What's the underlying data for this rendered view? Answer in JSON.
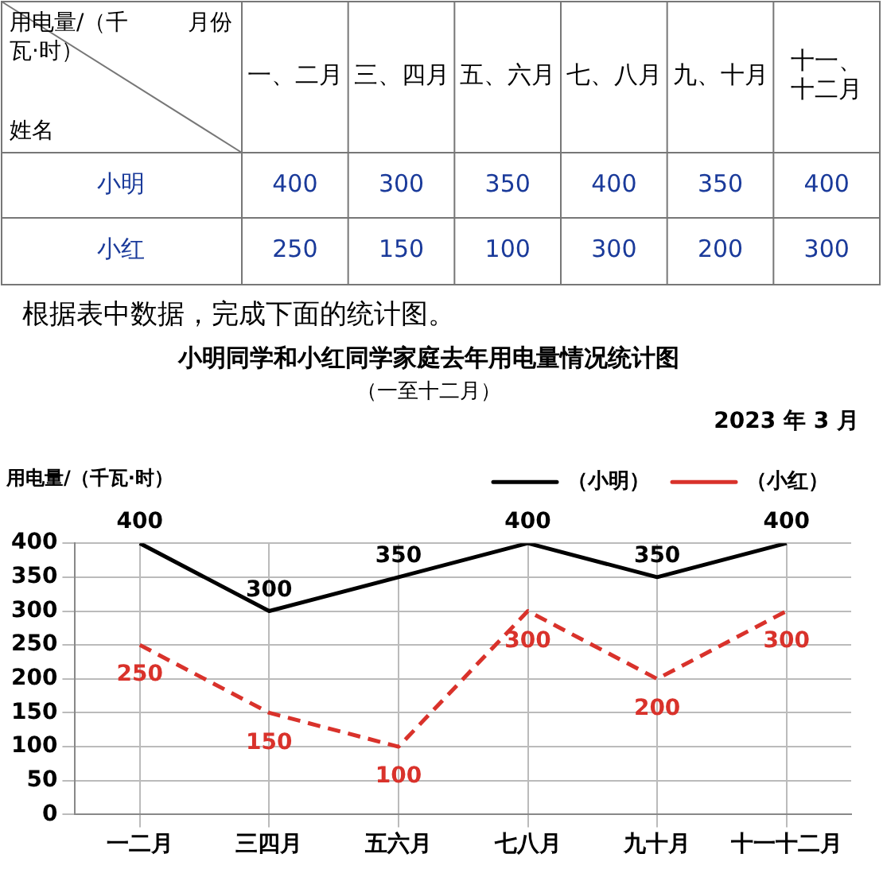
{
  "chart_data": [
    {
      "type": "heatmap",
      "xlabel": "月份",
      "ylabel": "用电量/（千瓦·时）",
      "annotations": [
        "姓名",
        "根据表中数据，完成下面的统计图。"
      ],
      "categories": [
        "一、二月",
        "三、四月",
        "五、六月",
        "七、八月",
        "九、十月",
        "十一、十二月"
      ],
      "y_categories": [
        "小明",
        "小红"
      ],
      "data_labels": true,
      "cells": [
        [
          400,
          300,
          350,
          400,
          350,
          400
        ],
        [
          250,
          150,
          100,
          300,
          200,
          300
        ]
      ]
    },
    {
      "type": "line",
      "title": "小明同学和小红同学家庭去年用电量情况统计图",
      "subtitle": "（一至十二月）",
      "ylabel": "用电量/（千瓦·时）",
      "annotations": [
        "2023 年 3 月"
      ],
      "categories": [
        "一二月",
        "三四月",
        "五六月",
        "七八月",
        "九十月",
        "十一十二月"
      ],
      "series": [
        {
          "name": "（小明）",
          "color": "#000000",
          "line_style": "solid",
          "values": [
            400,
            300,
            350,
            400,
            350,
            400
          ]
        },
        {
          "name": "（小红）",
          "color": "#d9322b",
          "line_style": "dashed",
          "values": [
            250,
            150,
            100,
            300,
            200,
            300
          ]
        }
      ],
      "ylim": [
        0,
        400
      ],
      "yticks": [
        0,
        50,
        100,
        150,
        200,
        250,
        300,
        350,
        400
      ],
      "grid": true,
      "legend": "top right",
      "data_labels": true,
      "marker": "none"
    }
  ]
}
